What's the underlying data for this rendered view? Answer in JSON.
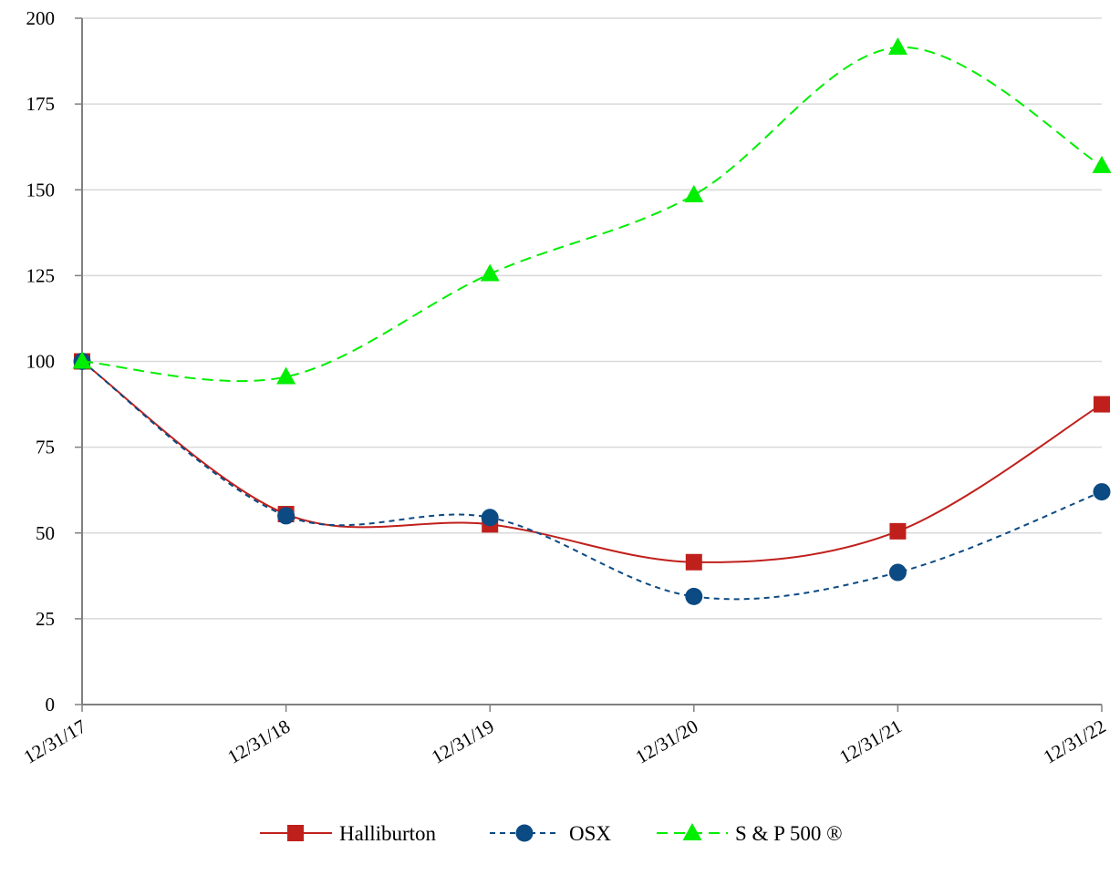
{
  "chart_data": {
    "type": "line",
    "title": "",
    "xlabel": "",
    "ylabel": "",
    "categories": [
      "12/31/17",
      "12/31/18",
      "12/31/19",
      "12/31/20",
      "12/31/21",
      "12/31/22"
    ],
    "ylim": [
      0,
      200
    ],
    "yticks": [
      0,
      25,
      50,
      75,
      100,
      125,
      150,
      175,
      200
    ],
    "grid": true,
    "legend_position": "bottom",
    "series": [
      {
        "name": "Halliburton",
        "values": [
          100,
          55.5,
          52.5,
          41.5,
          50.5,
          87.5
        ],
        "color": "#c0201c",
        "marker": "square",
        "line_style": "solid"
      },
      {
        "name": "OSX",
        "values": [
          100,
          55,
          54.5,
          31.5,
          38.5,
          62
        ],
        "color": "#0b4a82",
        "marker": "circle",
        "line_style": "dashed"
      },
      {
        "name": "S & P 500 ®",
        "values": [
          100,
          95.5,
          125.5,
          148.5,
          191.5,
          157
        ],
        "color": "#00ee00",
        "marker": "triangle",
        "line_style": "dashed"
      }
    ]
  }
}
